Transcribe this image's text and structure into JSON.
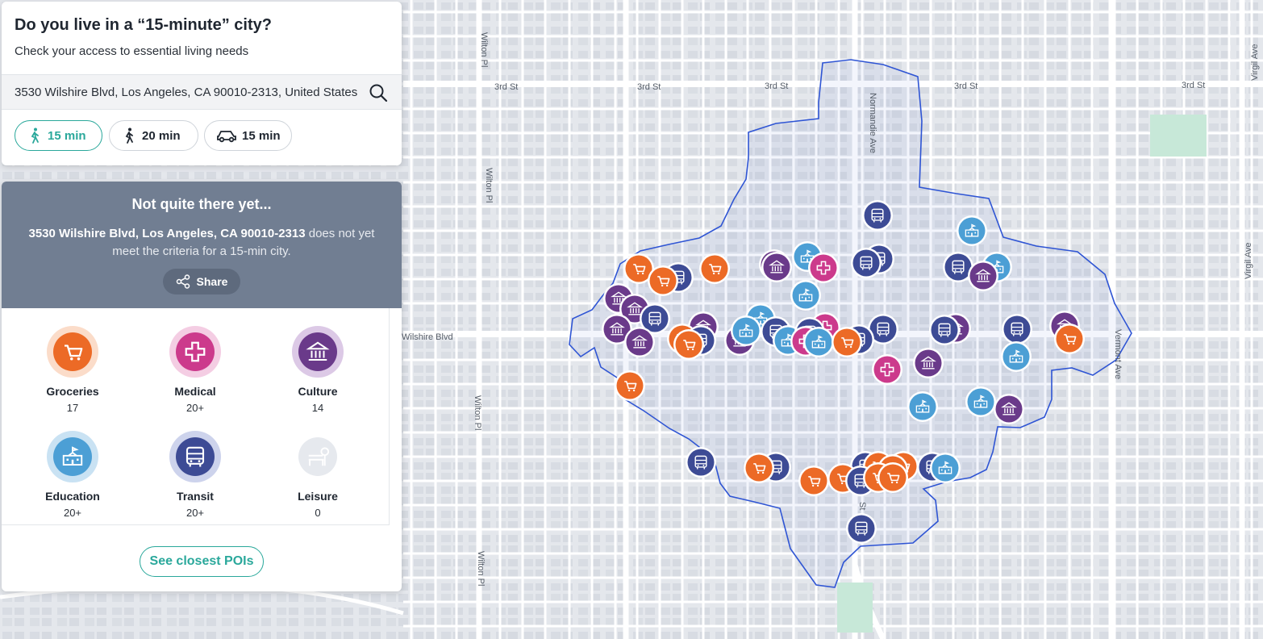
{
  "panel": {
    "title": "Do you live in a “15-minute” city?",
    "subtitle": "Check your access to essential living needs",
    "search": {
      "value": "3530 Wilshire Blvd, Los Angeles, CA 90010-2313, United States",
      "icon": "search-icon"
    },
    "modes": [
      {
        "label": "15 min",
        "icon": "walk-icon",
        "active": true
      },
      {
        "label": "20 min",
        "icon": "walk-icon",
        "active": false
      },
      {
        "label": "15 min",
        "icon": "car-icon",
        "active": false
      }
    ]
  },
  "result": {
    "heading": "Not quite there yet...",
    "address": "3530 Wilshire Blvd, Los Angeles, CA 90010-2313",
    "message": "does not yet meet the criteria for a 15-min city.",
    "share_label": "Share",
    "categories": [
      {
        "name": "Groceries",
        "count": "17",
        "icon": "cart-icon",
        "color": "#ec6a26",
        "ring": "#fbdcc9"
      },
      {
        "name": "Medical",
        "count": "20+",
        "icon": "medical-cross-icon",
        "color": "#cc3a8c",
        "ring": "#f4cde3"
      },
      {
        "name": "Culture",
        "count": "14",
        "icon": "museum-icon",
        "color": "#6a3a8a",
        "ring": "#dcc9e6"
      },
      {
        "name": "Education",
        "count": "20+",
        "icon": "school-icon",
        "color": "#4c9fd5",
        "ring": "#c9e2f3"
      },
      {
        "name": "Transit",
        "count": "20+",
        "icon": "bus-icon",
        "color": "#3d4b95",
        "ring": "#cdd3ec"
      },
      {
        "name": "Leisure",
        "count": "0",
        "icon": "park-bench-icon",
        "color": "#e6e9ee",
        "ring": "#ffffff"
      }
    ],
    "closest_label": "See closest POIs"
  },
  "map": {
    "streets": [
      "3rd St",
      "3rd St",
      "3rd St",
      "3rd St",
      "3rd St",
      "Wilshire Blvd",
      "Wilton Pl",
      "Wilton Pl",
      "Wilton Pl",
      "Wilton Pl",
      "Normandie Ave",
      "Vermont Ave",
      "Virgil Ave",
      "Virgil Ave",
      "St"
    ],
    "colors": {
      "isochrone": "#2f55d4",
      "groceries": "#ec6a26",
      "medical": "#cc3a8c",
      "culture": "#6a3a8a",
      "education": "#4c9fd5",
      "transit": "#3d4b95"
    }
  }
}
